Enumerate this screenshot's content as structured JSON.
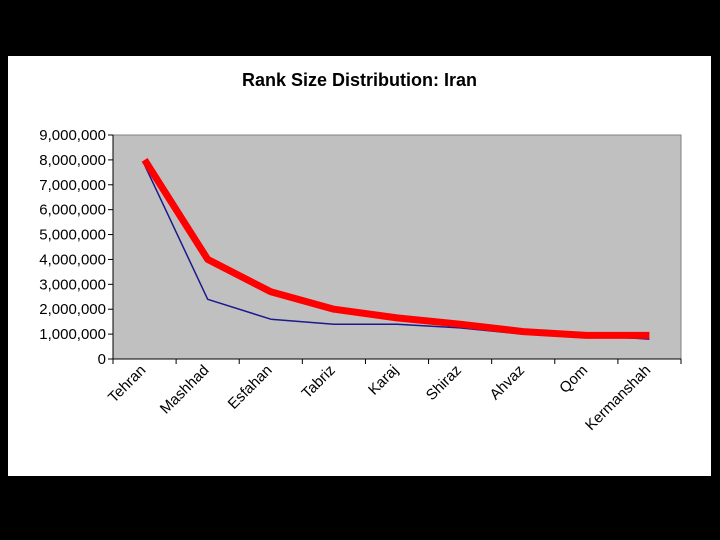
{
  "chart_data": {
    "type": "line",
    "title": "Rank Size Distribution: Iran",
    "xlabel": "",
    "ylabel": "",
    "categories": [
      "Tehran",
      "Mashhad",
      "Esfahan",
      "Tabriz",
      "Karaj",
      "Shiraz",
      "Ahvaz",
      "Qom",
      "Kermanshah"
    ],
    "ylim": [
      0,
      9000000
    ],
    "ytick_values": [
      0,
      1000000,
      2000000,
      3000000,
      4000000,
      5000000,
      6000000,
      7000000,
      8000000,
      9000000
    ],
    "ytick_labels": [
      "0",
      "1,000,000",
      "2,000,000",
      "3,000,000",
      "4,000,000",
      "5,000,000",
      "6,000,000",
      "7,000,000",
      "8,000,000",
      "9,000,000"
    ],
    "grid": false,
    "plot_background": "#c0c0c0",
    "series": [
      {
        "color": "#1a1a8c",
        "values": [
          7800000,
          2400000,
          1600000,
          1400000,
          1400000,
          1250000,
          1000000,
          950000,
          800000
        ]
      },
      {
        "color": "#ff0000",
        "values": [
          8000000,
          4000000,
          2700000,
          2000000,
          1650000,
          1400000,
          1100000,
          950000,
          950000
        ]
      }
    ]
  }
}
